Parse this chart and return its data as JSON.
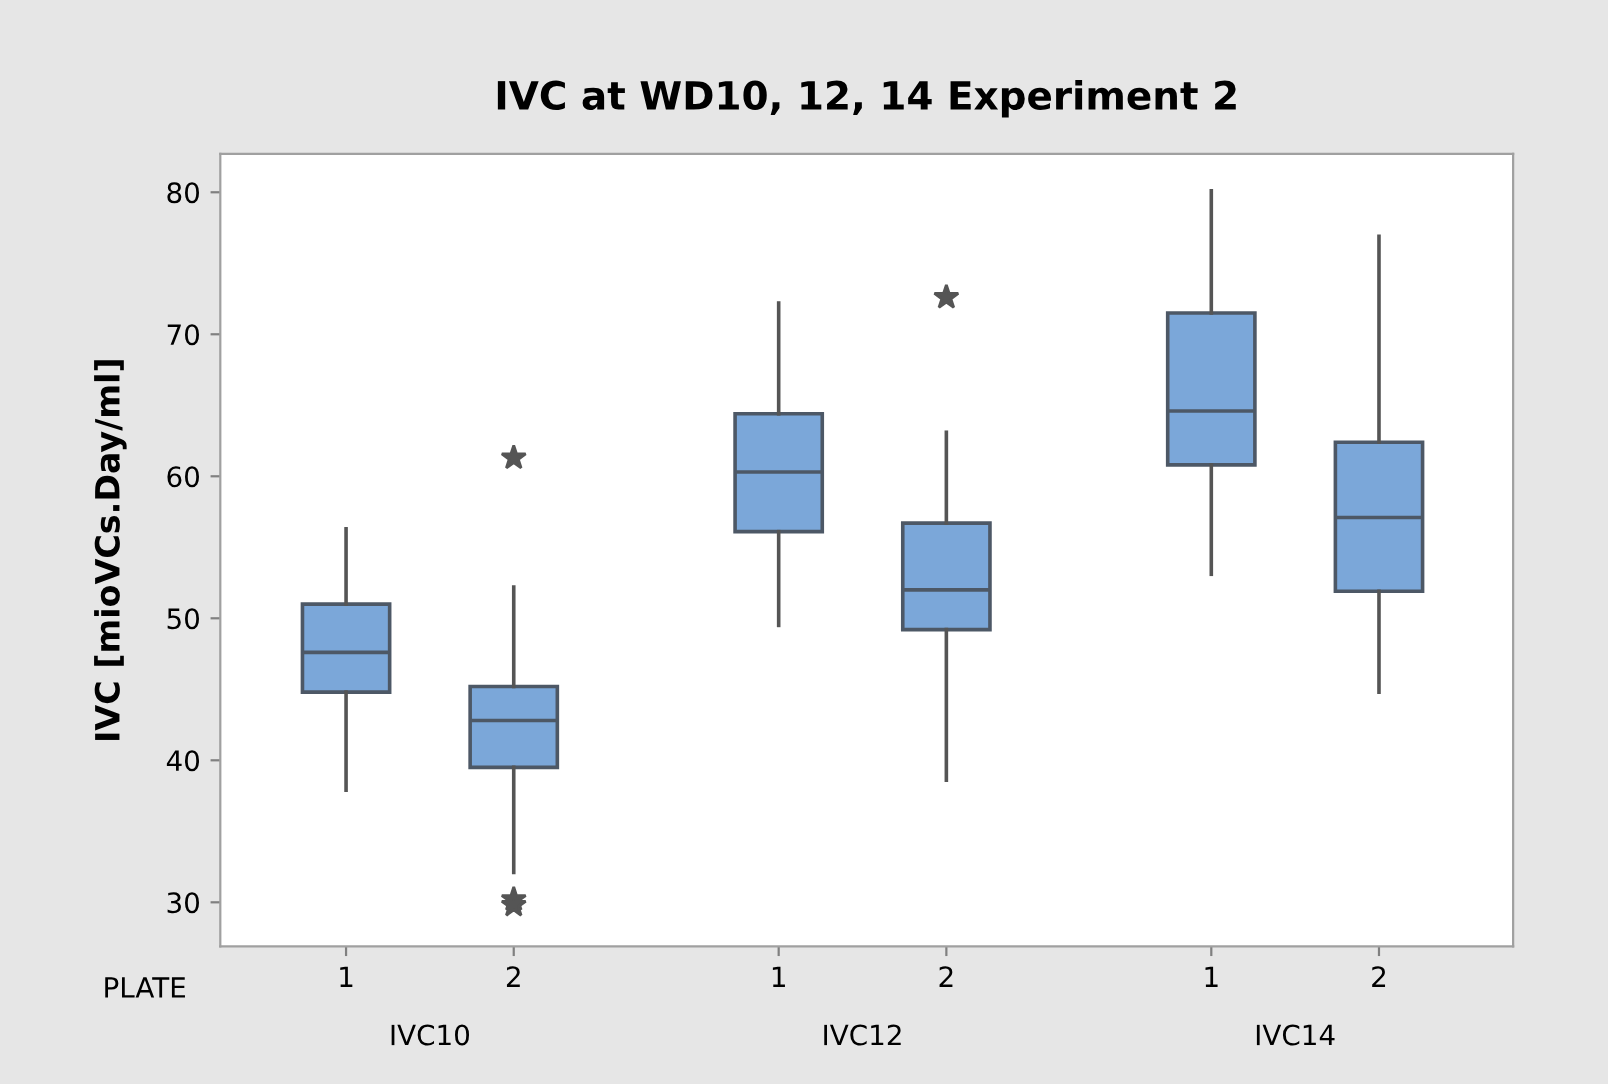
{
  "chart_data": {
    "type": "box",
    "title": "IVC at WD10, 12, 14 Experiment 2",
    "ylabel": "IVC [mioVCs.Day/ml]",
    "categories": [
      "1",
      "2",
      "1",
      "2",
      "1",
      "2"
    ],
    "annotations": [
      "PLATE",
      "IVC10",
      "IVC12",
      "IVC14"
    ],
    "color": "#7ba7d9",
    "boxes": [
      {
        "low": 37.9,
        "q1": 44.8,
        "median": 47.6,
        "q3": 51.0,
        "high": 56.3
      },
      {
        "low": 32.1,
        "q1": 39.5,
        "median": 42.8,
        "q3": 45.2,
        "high": 52.2,
        "outliers": [
          61.3,
          30.2,
          29.8
        ]
      },
      {
        "low": 49.5,
        "q1": 56.1,
        "median": 60.3,
        "q3": 64.4,
        "high": 72.2
      },
      {
        "low": 38.6,
        "q1": 49.2,
        "median": 52.0,
        "q3": 56.7,
        "high": 63.1,
        "outliers": [
          72.6
        ]
      },
      {
        "low": 53.1,
        "q1": 60.8,
        "median": 64.6,
        "q3": 71.5,
        "high": 80.1
      },
      {
        "low": 44.8,
        "q1": 51.9,
        "median": 57.1,
        "q3": 62.4,
        "high": 76.9
      }
    ],
    "ylim": [
      26.9,
      82.7
    ],
    "yticks": [
      30,
      40,
      50,
      60,
      70,
      80
    ],
    "grid": false,
    "legend": false
  }
}
